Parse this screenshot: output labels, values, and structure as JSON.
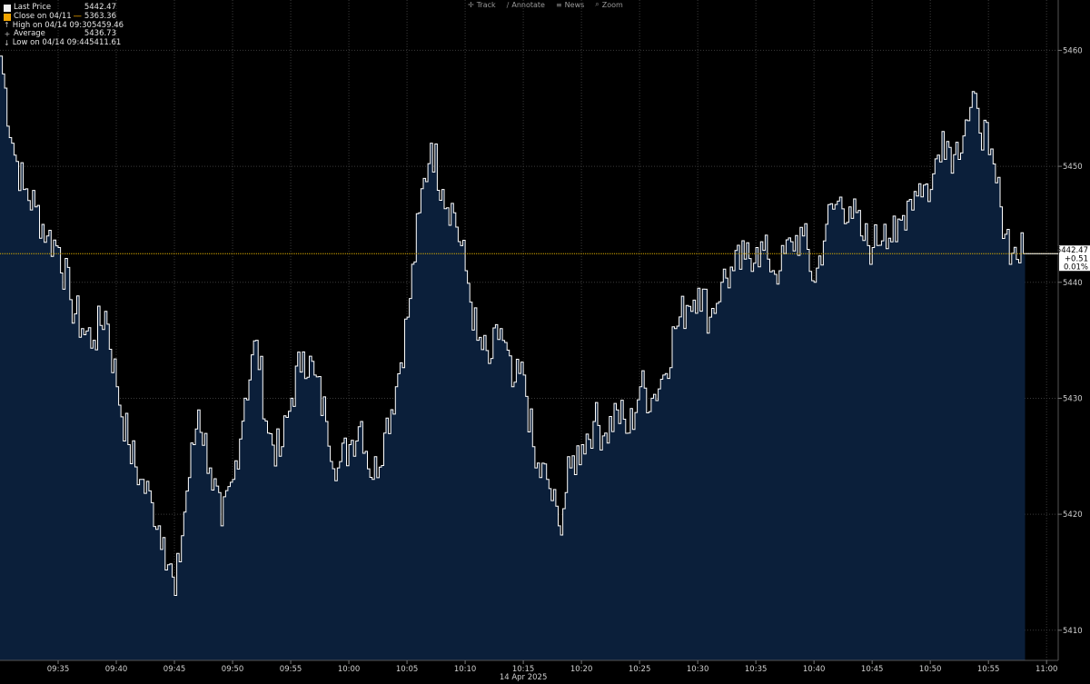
{
  "toolbar": {
    "items": [
      {
        "label": "Track",
        "icon": "crosshair-icon",
        "glyph": "✛"
      },
      {
        "label": "Annotate",
        "icon": "pencil-icon",
        "glyph": "∕"
      },
      {
        "label": "News",
        "icon": "news-icon",
        "glyph": "≡"
      },
      {
        "label": "Zoom",
        "icon": "magnifier-icon",
        "glyph": "⌕"
      }
    ]
  },
  "legend": {
    "rows": [
      {
        "label": "Last Price",
        "value": "5442.47",
        "marker": "box-white"
      },
      {
        "label": "Close on 04/11",
        "suffix": "----",
        "value": "5363.36",
        "marker": "box-orange"
      },
      {
        "label": "High on 04/14 09:30",
        "value": "5459.46",
        "marker": "glyph",
        "glyph": "↑"
      },
      {
        "label": "Average",
        "value": "5436.73",
        "marker": "glyph",
        "glyph": "+"
      },
      {
        "label": "Low on 04/14 09:44",
        "value": "5411.61",
        "marker": "glyph",
        "glyph": "↓"
      }
    ]
  },
  "colors": {
    "background": "#000000",
    "area_fill": "#0b1f3a",
    "line": "#ffffff",
    "current_line": "#e0b000",
    "grid": "#3a3a3a",
    "tick_text": "#cfcfcf"
  },
  "chart_data": {
    "type": "area",
    "date_label": "14 Apr 2025",
    "x_ticks": [
      "09:35",
      "09:40",
      "09:45",
      "09:50",
      "09:55",
      "10:00",
      "10:05",
      "10:10",
      "10:15",
      "10:20",
      "10:25",
      "10:30",
      "10:35",
      "10:40",
      "10:45",
      "10:50",
      "10:55",
      "11:00"
    ],
    "y_ticks": [
      5410,
      5420,
      5430,
      5440,
      5450,
      5460
    ],
    "xlim": [
      "09:30",
      "11:01"
    ],
    "ylim": [
      5407.4,
      5463.4
    ],
    "grid": true,
    "current_price": {
      "value": 5442.47,
      "change": "+0.51",
      "pct": "0.01%",
      "label": "5442.47"
    },
    "series": [
      {
        "name": "Last Price",
        "x": [
          "09:30",
          "09:31",
          "09:32",
          "09:33",
          "09:34",
          "09:35",
          "09:36",
          "09:37",
          "09:38",
          "09:39",
          "09:40",
          "09:41",
          "09:42",
          "09:43",
          "09:44",
          "09:45",
          "09:46",
          "09:47",
          "09:48",
          "09:49",
          "09:50",
          "09:51",
          "09:52",
          "09:53",
          "09:54",
          "09:55",
          "09:56",
          "09:57",
          "09:58",
          "09:59",
          "10:00",
          "10:01",
          "10:02",
          "10:03",
          "10:04",
          "10:05",
          "10:06",
          "10:07",
          "10:08",
          "10:09",
          "10:10",
          "10:11",
          "10:12",
          "10:13",
          "10:14",
          "10:15",
          "10:16",
          "10:17",
          "10:18",
          "10:19",
          "10:20",
          "10:21",
          "10:22",
          "10:23",
          "10:24",
          "10:25",
          "10:26",
          "10:27",
          "10:28",
          "10:29",
          "10:30",
          "10:31",
          "10:32",
          "10:33",
          "10:34",
          "10:35",
          "10:36",
          "10:37",
          "10:38",
          "10:39",
          "10:40",
          "10:41",
          "10:42",
          "10:43",
          "10:44",
          "10:45",
          "10:46",
          "10:47",
          "10:48",
          "10:49",
          "10:50",
          "10:51",
          "10:52",
          "10:53",
          "10:54",
          "10:55",
          "10:56",
          "10:57",
          "10:58"
        ],
        "y": [
          5459.5,
          5452.0,
          5448.0,
          5446.5,
          5444.0,
          5443.0,
          5438.5,
          5436.0,
          5435.0,
          5437.5,
          5431.0,
          5426.0,
          5423.0,
          5421.0,
          5418.0,
          5413.0,
          5422.0,
          5429.0,
          5424.0,
          5419.0,
          5423.0,
          5430.0,
          5435.0,
          5427.0,
          5425.0,
          5430.0,
          5434.0,
          5432.0,
          5428.0,
          5424.0,
          5426.0,
          5428.0,
          5423.0,
          5427.0,
          5431.0,
          5437.0,
          5446.0,
          5452.0,
          5448.0,
          5446.0,
          5441.0,
          5435.0,
          5433.0,
          5436.0,
          5431.0,
          5432.0,
          5424.0,
          5423.0,
          5419.0,
          5424.0,
          5426.0,
          5428.0,
          5427.0,
          5429.0,
          5427.0,
          5431.0,
          5430.0,
          5432.0,
          5436.0,
          5438.0,
          5439.5,
          5437.0,
          5440.0,
          5441.0,
          5442.0,
          5443.0,
          5442.0,
          5441.0,
          5443.5,
          5444.0,
          5440.0,
          5445.0,
          5447.0,
          5446.5,
          5444.0,
          5443.0,
          5445.0,
          5443.5,
          5447.0,
          5448.5,
          5448.0,
          5453.0,
          5451.0,
          5454.0,
          5455.0,
          5451.0,
          5446.5,
          5442.5,
          5442.47
        ]
      }
    ]
  }
}
